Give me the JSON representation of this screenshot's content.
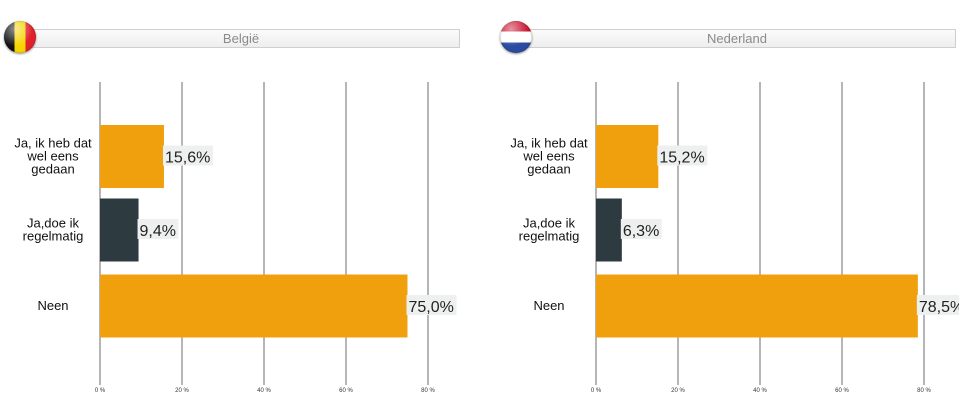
{
  "colors": {
    "accent": "#f0a00c",
    "dark": "#2d3b41",
    "grid": "#6e6e6e",
    "label_bg": "#eef0f0"
  },
  "chart_data": [
    {
      "type": "bar",
      "orientation": "horizontal",
      "title": "België",
      "flag": "belgium-flag-icon",
      "categories": [
        "Ja, ik heb dat wel eens gedaan",
        "Ja,doe ik regelmatig",
        "Neen"
      ],
      "category_lines": [
        [
          "Ja, ik heb dat",
          "wel eens",
          "gedaan"
        ],
        [
          "Ja,doe ik",
          "regelmatig"
        ],
        [
          "Neen"
        ]
      ],
      "values": [
        15.6,
        9.4,
        75.0
      ],
      "value_labels": [
        "15,6%",
        "9,4%",
        "75,0%"
      ],
      "bar_colors": [
        "#f0a00c",
        "#2d3b41",
        "#f0a00c"
      ],
      "xlim": [
        0,
        80
      ],
      "xticks": [
        0,
        20,
        40,
        60,
        80
      ],
      "xtick_labels": [
        "0 %",
        "20 %",
        "40 %",
        "60 %",
        "80 %"
      ],
      "grid": true
    },
    {
      "type": "bar",
      "orientation": "horizontal",
      "title": "Nederland",
      "flag": "netherlands-flag-icon",
      "categories": [
        "Ja, ik heb dat wel eens gedaan",
        "Ja,doe ik regelmatig",
        "Neen"
      ],
      "category_lines": [
        [
          "Ja, ik heb dat",
          "wel eens",
          "gedaan"
        ],
        [
          "Ja,doe ik",
          "regelmatig"
        ],
        [
          "Neen"
        ]
      ],
      "values": [
        15.2,
        6.3,
        78.5
      ],
      "value_labels": [
        "15,2%",
        "6,3%",
        "78,5%"
      ],
      "bar_colors": [
        "#f0a00c",
        "#2d3b41",
        "#f0a00c"
      ],
      "xlim": [
        0,
        80
      ],
      "xticks": [
        0,
        20,
        40,
        60,
        80
      ],
      "xtick_labels": [
        "0 %",
        "20 %",
        "40 %",
        "60 %",
        "80 %"
      ],
      "grid": true
    }
  ]
}
